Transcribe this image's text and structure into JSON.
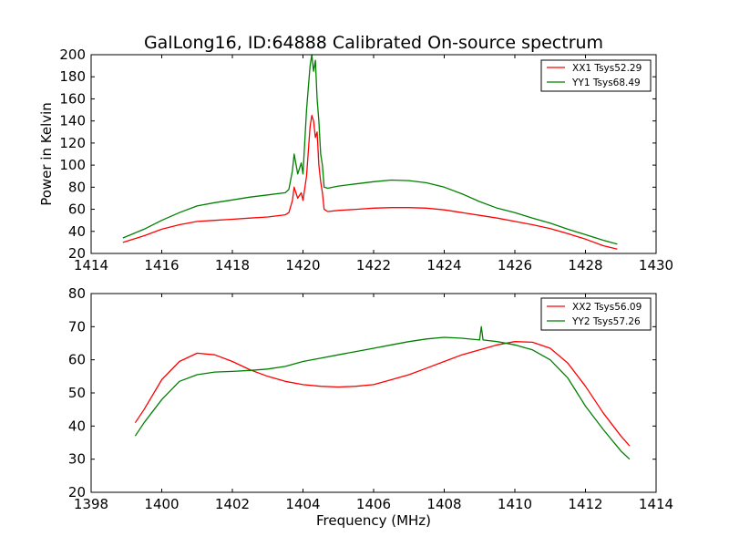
{
  "figure": {
    "title": "GalLong16, ID:64888 Calibrated On-source spectrum",
    "ylabel": "Power in Kelvin",
    "xlabel": "Frequency (MHz)",
    "colors": {
      "red": "#ff0000",
      "green": "#008000"
    }
  },
  "chart_data": [
    {
      "type": "line",
      "title": "GalLong16, ID:64888 Calibrated On-source spectrum",
      "xlabel": "",
      "ylabel": "Power in Kelvin",
      "xlim": [
        1414,
        1430
      ],
      "ylim": [
        20,
        200
      ],
      "xticks": [
        1414,
        1416,
        1418,
        1420,
        1422,
        1424,
        1426,
        1428,
        1430
      ],
      "yticks": [
        20,
        40,
        60,
        80,
        100,
        120,
        140,
        160,
        180,
        200
      ],
      "grid": false,
      "legend_position": "top-right",
      "series": [
        {
          "name": "XX1 Tsys52.29",
          "color": "#ff0000",
          "x": [
            1414.9,
            1415.5,
            1416.0,
            1416.5,
            1417.0,
            1417.5,
            1418.0,
            1418.5,
            1419.0,
            1419.5,
            1419.6,
            1419.7,
            1419.75,
            1419.85,
            1419.95,
            1420.0,
            1420.1,
            1420.2,
            1420.25,
            1420.3,
            1420.35,
            1420.4,
            1420.45,
            1420.5,
            1420.55,
            1420.6,
            1420.7,
            1421.0,
            1421.5,
            1422.0,
            1422.5,
            1423.0,
            1423.5,
            1424.0,
            1424.5,
            1425.0,
            1425.5,
            1426.0,
            1426.5,
            1427.0,
            1427.5,
            1428.0,
            1428.5,
            1428.9
          ],
          "y": [
            30,
            36,
            42,
            46,
            49,
            50,
            51,
            52,
            53,
            55,
            57,
            68,
            80,
            70,
            75,
            68,
            90,
            135,
            145,
            140,
            125,
            130,
            100,
            85,
            75,
            60,
            58,
            59,
            60,
            61,
            61.5,
            61.5,
            61,
            59.5,
            57,
            54.5,
            52,
            49,
            46,
            42.5,
            38,
            33,
            27,
            24
          ]
        },
        {
          "name": "YY1 Tsys68.49",
          "color": "#008000",
          "x": [
            1414.9,
            1415.5,
            1416.0,
            1416.5,
            1417.0,
            1417.5,
            1418.0,
            1418.5,
            1419.0,
            1419.5,
            1419.6,
            1419.7,
            1419.75,
            1419.85,
            1419.95,
            1420.0,
            1420.1,
            1420.2,
            1420.25,
            1420.3,
            1420.35,
            1420.4,
            1420.45,
            1420.5,
            1420.55,
            1420.6,
            1420.7,
            1421.0,
            1421.5,
            1422.0,
            1422.5,
            1423.0,
            1423.5,
            1424.0,
            1424.5,
            1425.0,
            1425.5,
            1426.0,
            1426.5,
            1427.0,
            1427.5,
            1428.0,
            1428.5,
            1428.9
          ],
          "y": [
            34,
            42,
            50,
            57,
            63,
            66,
            68.5,
            71,
            73,
            75,
            78,
            95,
            110,
            92,
            102,
            92,
            150,
            190,
            200,
            185,
            195,
            160,
            140,
            110,
            100,
            80,
            79,
            81,
            83,
            85,
            86.5,
            86,
            84,
            80,
            74,
            67,
            61,
            57,
            52,
            47.5,
            42,
            37,
            32,
            28.5
          ]
        }
      ]
    },
    {
      "type": "line",
      "title": "",
      "xlabel": "Frequency (MHz)",
      "ylabel": "",
      "xlim": [
        1398,
        1414
      ],
      "ylim": [
        20,
        80
      ],
      "xticks": [
        1398,
        1400,
        1402,
        1404,
        1406,
        1408,
        1410,
        1412,
        1414
      ],
      "yticks": [
        20,
        30,
        40,
        50,
        60,
        70,
        80
      ],
      "grid": false,
      "legend_position": "top-right",
      "series": [
        {
          "name": "XX2 Tsys56.09",
          "color": "#ff0000",
          "x": [
            1399.25,
            1399.5,
            1400.0,
            1400.5,
            1401.0,
            1401.5,
            1402.0,
            1402.5,
            1403.0,
            1403.5,
            1404.0,
            1404.5,
            1405.0,
            1405.5,
            1406.0,
            1406.5,
            1407.0,
            1407.5,
            1408.0,
            1408.5,
            1409.0,
            1409.5,
            1410.0,
            1410.5,
            1411.0,
            1411.5,
            1412.0,
            1412.5,
            1413.0,
            1413.25
          ],
          "y": [
            41,
            45,
            54,
            59.5,
            62,
            61.5,
            59.5,
            57,
            55,
            53.5,
            52.5,
            52,
            51.8,
            52,
            52.5,
            54,
            55.5,
            57.5,
            59.5,
            61.5,
            63,
            64.5,
            65.5,
            65.3,
            63.5,
            59,
            52,
            44,
            37,
            34
          ]
        },
        {
          "name": "YY2 Tsys57.26",
          "color": "#008000",
          "x": [
            1399.25,
            1399.5,
            1400.0,
            1400.5,
            1401.0,
            1401.5,
            1402.0,
            1402.5,
            1403.0,
            1403.5,
            1404.0,
            1404.5,
            1405.0,
            1405.5,
            1406.0,
            1406.5,
            1407.0,
            1407.5,
            1408.0,
            1408.5,
            1409.0,
            1409.05,
            1409.1,
            1409.5,
            1410.0,
            1410.5,
            1411.0,
            1411.5,
            1412.0,
            1412.5,
            1413.0,
            1413.25
          ],
          "y": [
            37,
            41,
            48,
            53.5,
            55.5,
            56.3,
            56.5,
            56.8,
            57.2,
            58,
            59.5,
            60.5,
            61.5,
            62.5,
            63.5,
            64.5,
            65.5,
            66.3,
            66.8,
            66.5,
            66,
            70,
            66,
            65.5,
            64.5,
            63,
            60,
            54.5,
            46,
            39,
            32.5,
            30
          ]
        }
      ]
    }
  ]
}
